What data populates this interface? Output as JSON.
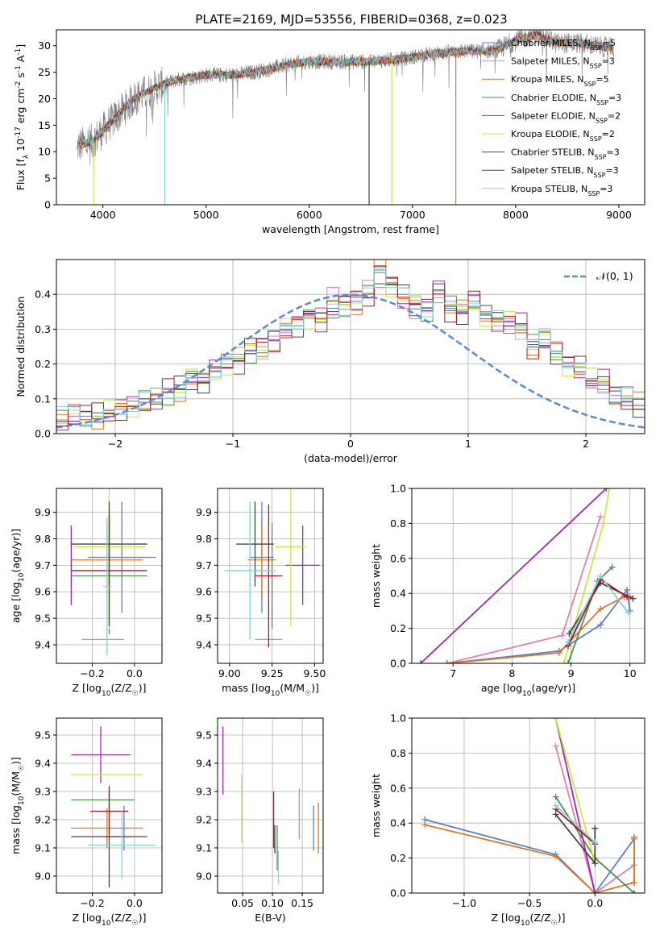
{
  "figure": {
    "title": "PLATE=2169, MJD=53556, FIBERID=0368, z=0.023"
  },
  "chart_data": [
    {
      "type": "line",
      "name": "spectrum",
      "xlabel": "wavelength [Angstrom, rest frame]",
      "ylabel": "Flux [f_λ 10^-17 erg cm^-2 s^-1 A^-1]",
      "xlim": [
        3550,
        9250
      ],
      "ylim": [
        0,
        33
      ],
      "xticks": [
        4000,
        5000,
        6000,
        7000,
        8000,
        9000
      ],
      "yticks": [
        0,
        5,
        10,
        15,
        20,
        25,
        30
      ],
      "x_range_data": [
        3750,
        8950
      ],
      "anchors": [
        [
          3750,
          11
        ],
        [
          3900,
          12
        ],
        [
          4000,
          14
        ],
        [
          4100,
          16
        ],
        [
          4200,
          18
        ],
        [
          4300,
          20
        ],
        [
          4400,
          21
        ],
        [
          4500,
          22
        ],
        [
          4700,
          23.5
        ],
        [
          5000,
          24.5
        ],
        [
          5300,
          24.5
        ],
        [
          5600,
          25.5
        ],
        [
          5800,
          26.5
        ],
        [
          6000,
          27
        ],
        [
          6300,
          27
        ],
        [
          6600,
          27
        ],
        [
          6900,
          27.5
        ],
        [
          7200,
          28.5
        ],
        [
          7500,
          29
        ],
        [
          7800,
          29
        ],
        [
          8000,
          31
        ],
        [
          8200,
          32
        ],
        [
          8400,
          30.5
        ],
        [
          8600,
          30.5
        ],
        [
          8950,
          29.5
        ]
      ],
      "legend": [
        {
          "name": "Chabrier MILES",
          "n": "5",
          "color": "#5a7fc7"
        },
        {
          "name": "Salpeter MILES",
          "n": "3",
          "color": "#e07fb8"
        },
        {
          "name": "Kroupa MILES",
          "n": "5",
          "color": "#d97a24"
        },
        {
          "name": "Chabrier ELODIE",
          "n": "3",
          "color": "#4f8f4f"
        },
        {
          "name": "Salpeter ELODIE",
          "n": "2",
          "color": "#9b2aac"
        },
        {
          "name": "Kroupa ELODIE",
          "n": "2",
          "color": "#c9e84a"
        },
        {
          "name": "Chabrier STELIB",
          "n": "3",
          "color": "#444444"
        },
        {
          "name": "Salpeter STELIB",
          "n": "3",
          "color": "#b01818"
        },
        {
          "name": "Kroupa STELIB",
          "n": "3",
          "color": "#7fd4e0"
        }
      ],
      "model_colors": [
        "#5a7fc7",
        "#e07fb8",
        "#d97a24",
        "#4f8f4f",
        "#9b2aac",
        "#c9e84a",
        "#444444",
        "#b01818",
        "#7fd4e0"
      ],
      "data_color": "#808080"
    },
    {
      "type": "histogram",
      "name": "residuals",
      "xlabel": "(data-model)/error",
      "ylabel": "Normed distribution",
      "xlim": [
        -2.5,
        2.5
      ],
      "ylim": [
        0,
        0.5
      ],
      "xticks": [
        -2,
        -1,
        0,
        1,
        2
      ],
      "yticks": [
        0.0,
        0.1,
        0.2,
        0.3,
        0.4
      ],
      "bin_width": 0.1,
      "legend": "𝒩(0, 1)",
      "normal_color": "#5a8ad0",
      "series": [
        {
          "color": "#5a7fc7",
          "values": [
            0.04,
            0.05,
            0.05,
            0.05,
            0.06,
            0.07,
            0.08,
            0.09,
            0.1,
            0.12,
            0.13,
            0.16,
            0.15,
            0.18,
            0.2,
            0.21,
            0.24,
            0.25,
            0.27,
            0.3,
            0.31,
            0.34,
            0.33,
            0.36,
            0.37,
            0.38,
            0.4,
            0.47,
            0.43,
            0.4,
            0.37,
            0.36,
            0.41,
            0.36,
            0.35,
            0.38,
            0.34,
            0.33,
            0.32,
            0.31,
            0.25,
            0.27,
            0.23,
            0.2,
            0.19,
            0.15,
            0.15,
            0.11,
            0.1,
            0.08
          ]
        },
        {
          "color": "#e07fb8",
          "values": [
            0.03,
            0.05,
            0.04,
            0.06,
            0.05,
            0.07,
            0.08,
            0.1,
            0.11,
            0.12,
            0.14,
            0.15,
            0.17,
            0.19,
            0.22,
            0.2,
            0.23,
            0.25,
            0.28,
            0.29,
            0.33,
            0.34,
            0.36,
            0.42,
            0.38,
            0.41,
            0.44,
            0.42,
            0.4,
            0.36,
            0.33,
            0.35,
            0.39,
            0.38,
            0.37,
            0.4,
            0.35,
            0.31,
            0.3,
            0.29,
            0.27,
            0.26,
            0.22,
            0.2,
            0.17,
            0.15,
            0.12,
            0.11,
            0.09,
            0.07
          ]
        }
      ],
      "extra_series_colors": [
        "#d97a24",
        "#4f8f4f",
        "#9b2aac",
        "#c9e84a",
        "#444444",
        "#b01818",
        "#7fd4e0"
      ]
    },
    {
      "type": "errorbar",
      "name": "age-vs-Z",
      "xlabel": "Z [log10(Z/Z☉)]",
      "ylabel": "age  [log10(age/yr)]",
      "xlim": [
        -0.37,
        0.13
      ],
      "ylim": [
        9.33,
        9.99
      ],
      "xticks": [
        -0.2,
        0.0
      ],
      "yticks": [
        9.4,
        9.5,
        9.6,
        9.7,
        9.8,
        9.9
      ],
      "points": [
        {
          "color": "#5a7fc7",
          "x": -0.06,
          "y": 9.73,
          "xerr": 0.16,
          "yerr": 0.21
        },
        {
          "color": "#e07fb8",
          "x": -0.15,
          "y": 9.42,
          "xerr": 0.1,
          "yerr": 0.0
        },
        {
          "color": "#d97a24",
          "x": -0.13,
          "y": 9.72,
          "xerr": 0.17,
          "yerr": 0.13
        },
        {
          "color": "#4f8f4f",
          "x": -0.12,
          "y": 9.66,
          "xerr": 0.18,
          "yerr": 0.22
        },
        {
          "color": "#9b2aac",
          "x": -0.3,
          "y": 9.7,
          "xerr": 0.0,
          "yerr": 0.15
        },
        {
          "color": "#c9e84a",
          "x": -0.12,
          "y": 9.77,
          "xerr": 0.17,
          "yerr": 0.31
        },
        {
          "color": "#444444",
          "x": -0.12,
          "y": 9.78,
          "xerr": 0.18,
          "yerr": 0.16
        },
        {
          "color": "#b01818",
          "x": -0.12,
          "y": 9.68,
          "xerr": 0.18,
          "yerr": 0.21
        },
        {
          "color": "#7fd4e0",
          "x": -0.13,
          "y": 9.62,
          "xerr": 0.02,
          "yerr": 0.26
        }
      ]
    },
    {
      "type": "errorbar",
      "name": "age-vs-mass",
      "xlabel": "mass [log10(M/M☉)]",
      "ylabel": "",
      "xlim": [
        8.93,
        9.55
      ],
      "ylim": [
        9.33,
        9.99
      ],
      "xticks": [
        9.0,
        9.25,
        9.5
      ],
      "yticks": [
        9.4,
        9.5,
        9.6,
        9.7,
        9.8,
        9.9
      ],
      "points": [
        {
          "color": "#5a7fc7",
          "x": 9.19,
          "y": 9.73,
          "xerr": 0.07,
          "yerr": 0.21
        },
        {
          "color": "#e07fb8",
          "x": 9.23,
          "y": 9.42,
          "xerr": 0.08,
          "yerr": 0.0
        },
        {
          "color": "#d97a24",
          "x": 9.19,
          "y": 9.72,
          "xerr": 0.08,
          "yerr": 0.14
        },
        {
          "color": "#4f8f4f",
          "x": 9.25,
          "y": 9.66,
          "xerr": 0.02,
          "yerr": 0.2
        },
        {
          "color": "#9b2aac",
          "x": 9.43,
          "y": 9.7,
          "xerr": 0.1,
          "yerr": 0.15
        },
        {
          "color": "#c9e84a",
          "x": 9.36,
          "y": 9.77,
          "xerr": 0.09,
          "yerr": 0.3
        },
        {
          "color": "#444444",
          "x": 9.15,
          "y": 9.78,
          "xerr": 0.11,
          "yerr": 0.16
        },
        {
          "color": "#b01818",
          "x": 9.23,
          "y": 9.66,
          "xerr": 0.08,
          "yerr": 0.27
        },
        {
          "color": "#7fd4e0",
          "x": 9.12,
          "y": 9.68,
          "xerr": 0.15,
          "yerr": 0.26
        }
      ]
    },
    {
      "type": "line",
      "name": "mass-weight-vs-age",
      "xlabel": "age  [log10(age/yr)]",
      "ylabel": "mass weight",
      "xlim": [
        6.3,
        10.25
      ],
      "ylim": [
        0.0,
        1.0
      ],
      "xticks": [
        7,
        8,
        9,
        10
      ],
      "yticks": [
        0.0,
        0.2,
        0.4,
        0.6,
        0.8,
        1.0
      ],
      "series": [
        {
          "color": "#5a7fc7",
          "points": [
            [
              6.9,
              0.0
            ],
            [
              8.8,
              0.07
            ],
            [
              9.5,
              0.22
            ],
            [
              9.95,
              0.42
            ],
            [
              10.0,
              0.3
            ]
          ]
        },
        {
          "color": "#e07fb8",
          "points": [
            [
              6.9,
              0.0
            ],
            [
              8.85,
              0.16
            ],
            [
              9.5,
              0.84
            ]
          ]
        },
        {
          "color": "#d97a24",
          "points": [
            [
              6.9,
              0.0
            ],
            [
              8.8,
              0.06
            ],
            [
              9.5,
              0.31
            ],
            [
              9.9,
              0.38
            ],
            [
              10.0,
              0.38
            ]
          ]
        },
        {
          "color": "#4f8f4f",
          "points": [
            [
              8.95,
              0.0
            ],
            [
              9.45,
              0.47
            ],
            [
              9.7,
              0.55
            ]
          ]
        },
        {
          "color": "#9b2aac",
          "points": [
            [
              6.45,
              0.0
            ],
            [
              9.6,
              1.0
            ]
          ]
        },
        {
          "color": "#c9e84a",
          "points": [
            [
              8.88,
              0.0
            ],
            [
              9.55,
              0.8
            ],
            [
              9.65,
              1.0
            ]
          ]
        },
        {
          "color": "#444444",
          "points": [
            [
              8.97,
              0.17
            ],
            [
              9.5,
              0.46
            ],
            [
              10.05,
              0.37
            ]
          ]
        },
        {
          "color": "#b01818",
          "points": [
            [
              8.95,
              0.1
            ],
            [
              9.5,
              0.48
            ],
            [
              9.95,
              0.38
            ]
          ]
        },
        {
          "color": "#7fd4e0",
          "points": [
            [
              8.95,
              0.12
            ],
            [
              9.5,
              0.5
            ],
            [
              9.97,
              0.29
            ]
          ]
        }
      ]
    },
    {
      "type": "errorbar",
      "name": "mass-vs-Z",
      "xlabel": "Z [log10(Z/Z☉)]",
      "ylabel": "mass [log10(M/M☉)]",
      "xlim": [
        -0.37,
        0.13
      ],
      "ylim": [
        8.94,
        9.56
      ],
      "xticks": [
        -0.2,
        0.0
      ],
      "yticks": [
        9.0,
        9.1,
        9.2,
        9.3,
        9.4,
        9.5
      ],
      "points": [
        {
          "color": "#5a7fc7",
          "x": -0.05,
          "y": 9.17,
          "xerr": 0.02,
          "yerr": 0.08
        },
        {
          "color": "#e07fb8",
          "x": -0.08,
          "y": 9.14,
          "xerr": 0.07,
          "yerr": 0.0
        },
        {
          "color": "#d97a24",
          "x": -0.13,
          "y": 9.17,
          "xerr": 0.17,
          "yerr": 0.07
        },
        {
          "color": "#4f8f4f",
          "x": -0.15,
          "y": 9.27,
          "xerr": 0.15,
          "yerr": 0.0
        },
        {
          "color": "#9b2aac",
          "x": -0.16,
          "y": 9.43,
          "xerr": 0.14,
          "yerr": 0.1
        },
        {
          "color": "#c9e84a",
          "x": -0.13,
          "y": 9.36,
          "xerr": 0.17,
          "yerr": 0.0
        },
        {
          "color": "#444444",
          "x": -0.12,
          "y": 9.14,
          "xerr": 0.18,
          "yerr": 0.18
        },
        {
          "color": "#b01818",
          "x": -0.12,
          "y": 9.23,
          "xerr": 0.09,
          "yerr": 0.08
        },
        {
          "color": "#7fd4e0",
          "x": -0.06,
          "y": 9.11,
          "xerr": 0.16,
          "yerr": 0.12
        }
      ]
    },
    {
      "type": "errorbar",
      "name": "mass-vs-ebv",
      "xlabel": "E(B-V)",
      "ylabel": "",
      "xlim": [
        0.008,
        0.185
      ],
      "ylim": [
        8.94,
        9.56
      ],
      "xticks": [
        0.05,
        0.1,
        0.15
      ],
      "yticks": [
        9.0,
        9.1,
        9.2,
        9.3,
        9.4,
        9.5
      ],
      "points": [
        {
          "color": "#5a7fc7",
          "x": 0.169,
          "y": 9.17,
          "xerr": 0.0,
          "yerr": 0.08
        },
        {
          "color": "#e07fb8",
          "x": 0.145,
          "y": 9.22,
          "xerr": 0.0,
          "yerr": 0.09
        },
        {
          "color": "#d97a24",
          "x": 0.177,
          "y": 9.17,
          "xerr": 0.0,
          "yerr": 0.09
        },
        {
          "color": "#4f8f4f",
          "x": 0.108,
          "y": 9.1,
          "xerr": 0.0,
          "yerr": 0.08
        },
        {
          "color": "#9b2aac",
          "x": 0.017,
          "y": 9.41,
          "xerr": 0.0,
          "yerr": 0.12
        },
        {
          "color": "#c9e84a",
          "x": 0.048,
          "y": 9.24,
          "xerr": 0.0,
          "yerr": 0.12
        },
        {
          "color": "#444444",
          "x": 0.104,
          "y": 9.13,
          "xerr": 0.0,
          "yerr": 0.05
        },
        {
          "color": "#b01818",
          "x": 0.102,
          "y": 9.2,
          "xerr": 0.0,
          "yerr": 0.1
        },
        {
          "color": "#7fd4e0",
          "x": 0.11,
          "y": 9.03,
          "xerr": 0.0,
          "yerr": 0.06
        }
      ]
    },
    {
      "type": "line",
      "name": "mass-weight-vs-Z",
      "xlabel": "Z [log10(Z/Z☉)]",
      "ylabel": "mass weight",
      "xlim": [
        -1.4,
        0.38
      ],
      "ylim": [
        0.0,
        1.0
      ],
      "xticks": [
        -1.0,
        -0.5,
        0.0
      ],
      "yticks": [
        0.0,
        0.2,
        0.4,
        0.6,
        0.8,
        1.0
      ],
      "series": [
        {
          "color": "#5a7fc7",
          "points": [
            [
              -1.3,
              0.42
            ],
            [
              -0.3,
              0.22
            ],
            [
              0.0,
              0.0
            ],
            [
              0.3,
              0.31
            ],
            [
              0.3,
              0.06
            ]
          ]
        },
        {
          "color": "#e07fb8",
          "points": [
            [
              -0.3,
              0.84
            ],
            [
              0.0,
              0.0
            ],
            [
              0.3,
              0.16
            ]
          ]
        },
        {
          "color": "#d97a24",
          "points": [
            [
              -1.3,
              0.39
            ],
            [
              -0.3,
              0.21
            ],
            [
              0.0,
              0.0
            ],
            [
              0.3,
              0.06
            ],
            [
              0.3,
              0.32
            ]
          ]
        },
        {
          "color": "#4f8f4f",
          "points": [
            [
              -0.3,
              0.55
            ],
            [
              0.0,
              0.2
            ],
            [
              0.3,
              0.0
            ]
          ]
        },
        {
          "color": "#9b2aac",
          "points": [
            [
              -0.3,
              1.0
            ],
            [
              0.0,
              0.0
            ]
          ]
        },
        {
          "color": "#c9e84a",
          "points": [
            [
              -0.3,
              1.0
            ],
            [
              0.0,
              0.17
            ]
          ]
        },
        {
          "color": "#444444",
          "points": [
            [
              -0.3,
              0.45
            ],
            [
              0.0,
              0.17
            ],
            [
              0.0,
              0.37
            ]
          ]
        },
        {
          "color": "#b01818",
          "points": [
            [
              -0.3,
              0.48
            ],
            [
              0.0,
              0.28
            ]
          ]
        },
        {
          "color": "#7fd4e0",
          "points": [
            [
              -0.3,
              0.5
            ],
            [
              0.0,
              0.29
            ]
          ]
        }
      ]
    }
  ]
}
